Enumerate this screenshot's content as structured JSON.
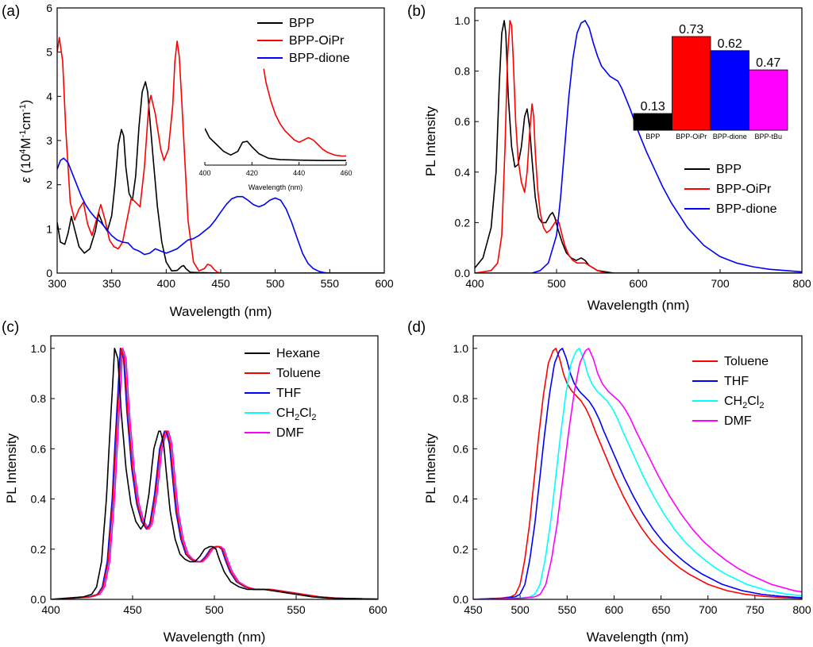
{
  "chart_data": [
    {
      "panel": "(a)",
      "type": "line",
      "xlabel": "Wavelength (nm)",
      "ylabel": "ε (10⁴M⁻¹cm⁻¹)",
      "xlim": [
        300,
        600
      ],
      "ylim": [
        0,
        6
      ],
      "xticks": [
        300,
        350,
        400,
        450,
        500,
        550,
        600
      ],
      "yticks": [
        0,
        1,
        2,
        3,
        4,
        5,
        6
      ],
      "legend": "top-right",
      "series": [
        {
          "name": "BPP",
          "color": "#000000",
          "x": [
            300,
            303,
            307,
            310,
            313,
            317,
            320,
            325,
            330,
            335,
            338,
            342,
            346,
            350,
            353,
            356,
            359,
            361,
            363,
            366,
            369,
            372,
            375,
            378,
            381,
            383,
            385,
            388,
            392,
            396,
            400,
            405,
            410,
            414,
            416,
            418,
            422,
            430,
            450,
            500,
            600
          ],
          "y": [
            1.15,
            0.7,
            0.65,
            0.9,
            1.28,
            0.9,
            0.6,
            0.45,
            0.55,
            0.95,
            1.35,
            1.1,
            0.95,
            1.3,
            2.0,
            2.9,
            3.25,
            3.1,
            2.4,
            1.8,
            1.65,
            2.2,
            3.3,
            4.1,
            4.33,
            4.1,
            3.5,
            2.6,
            1.5,
            0.7,
            0.25,
            0.05,
            0.06,
            0.15,
            0.17,
            0.1,
            0.02,
            0.01,
            0.0,
            0.0,
            0.0
          ]
        },
        {
          "name": "BPP-OiPr",
          "color": "#ff0000",
          "x": [
            300,
            302,
            305,
            308,
            312,
            316,
            320,
            324,
            328,
            332,
            336,
            340,
            344,
            348,
            352,
            356,
            360,
            364,
            368,
            372,
            376,
            380,
            384,
            386,
            390,
            395,
            398,
            402,
            406,
            408,
            410,
            412,
            414,
            417,
            420,
            425,
            430,
            435,
            438,
            441,
            444,
            447,
            450,
            500,
            600
          ],
          "y": [
            5.0,
            5.33,
            4.8,
            3.2,
            1.6,
            1.2,
            1.45,
            1.6,
            1.1,
            0.85,
            1.2,
            1.55,
            1.2,
            0.75,
            0.6,
            0.55,
            0.7,
            1.2,
            1.7,
            1.6,
            1.5,
            2.4,
            3.8,
            4.02,
            3.6,
            2.8,
            2.55,
            2.8,
            3.8,
            4.8,
            5.25,
            4.9,
            4.0,
            2.6,
            1.2,
            0.25,
            0.05,
            0.1,
            0.2,
            0.17,
            0.08,
            0.02,
            0.0,
            0.0,
            0.0
          ]
        },
        {
          "name": "BPP-dione",
          "color": "#0000ff",
          "x": [
            300,
            303,
            306,
            310,
            314,
            318,
            322,
            326,
            330,
            335,
            340,
            345,
            350,
            355,
            360,
            365,
            370,
            375,
            380,
            385,
            390,
            395,
            400,
            405,
            410,
            415,
            420,
            425,
            430,
            435,
            440,
            445,
            450,
            455,
            460,
            465,
            470,
            475,
            480,
            485,
            490,
            495,
            500,
            505,
            510,
            515,
            520,
            525,
            530,
            535,
            540,
            545,
            550,
            560,
            600
          ],
          "y": [
            2.35,
            2.55,
            2.6,
            2.5,
            2.25,
            2.0,
            1.75,
            1.55,
            1.4,
            1.25,
            1.15,
            1.0,
            0.85,
            0.75,
            0.7,
            0.68,
            0.55,
            0.5,
            0.42,
            0.45,
            0.55,
            0.5,
            0.45,
            0.5,
            0.55,
            0.65,
            0.75,
            0.78,
            0.85,
            0.95,
            1.05,
            1.2,
            1.38,
            1.55,
            1.68,
            1.73,
            1.73,
            1.65,
            1.55,
            1.5,
            1.55,
            1.65,
            1.7,
            1.65,
            1.45,
            1.15,
            0.8,
            0.45,
            0.22,
            0.1,
            0.04,
            0.01,
            0.0,
            0.0,
            0.0
          ]
        }
      ],
      "inset": {
        "xlabel": "Wavelength (nm)",
        "xlim": [
          400,
          460
        ],
        "xticks": [
          400,
          420,
          440,
          460
        ],
        "series": [
          {
            "name": "BPP",
            "color": "#000000",
            "x": [
              400,
              402,
              405,
              408,
              411,
              414,
              416,
              418,
              420,
              423,
              427,
              432,
              440,
              450,
              460
            ],
            "y": [
              0.8,
              0.6,
              0.45,
              0.3,
              0.22,
              0.3,
              0.5,
              0.52,
              0.4,
              0.25,
              0.15,
              0.12,
              0.11,
              0.1,
              0.1
            ]
          },
          {
            "name": "BPP-OiPr",
            "color": "#ff0000",
            "x": [
              425,
              426,
              428,
              430,
              432,
              434,
              436,
              438,
              440,
              442,
              444,
              446,
              448,
              450,
              452,
              455,
              458,
              460
            ],
            "y": [
              2.1,
              1.8,
              1.4,
              1.1,
              0.9,
              0.75,
              0.65,
              0.55,
              0.5,
              0.55,
              0.6,
              0.55,
              0.45,
              0.35,
              0.28,
              0.22,
              0.2,
              0.2
            ]
          }
        ]
      }
    },
    {
      "panel": "(b)",
      "type": "line",
      "xlabel": "Wavelength (nm)",
      "ylabel": "PL Intensity",
      "xlim": [
        400,
        800
      ],
      "ylim": [
        0,
        1.05
      ],
      "xticks": [
        400,
        500,
        600,
        700,
        800
      ],
      "yticks": [
        0.0,
        0.2,
        0.4,
        0.6,
        0.8,
        1.0
      ],
      "legend": "middle-right",
      "series": [
        {
          "name": "BPP",
          "color": "#000000",
          "x": [
            400,
            410,
            420,
            426,
            430,
            433,
            436,
            438,
            441,
            445,
            449,
            453,
            457,
            461,
            464,
            467,
            470,
            474,
            478,
            482,
            487,
            492,
            495,
            498,
            502,
            507,
            512,
            518,
            524,
            530,
            535,
            540,
            550,
            570,
            600,
            650,
            800
          ],
          "y": [
            0.02,
            0.06,
            0.18,
            0.4,
            0.75,
            0.95,
            1.0,
            0.95,
            0.7,
            0.5,
            0.42,
            0.43,
            0.5,
            0.62,
            0.65,
            0.58,
            0.45,
            0.3,
            0.22,
            0.2,
            0.2,
            0.23,
            0.24,
            0.22,
            0.17,
            0.12,
            0.08,
            0.06,
            0.05,
            0.06,
            0.05,
            0.03,
            0.01,
            0.0,
            0.0,
            0.0,
            0.0
          ]
        },
        {
          "name": "BPP-OiPr",
          "color": "#ff0000",
          "x": [
            400,
            420,
            428,
            433,
            437,
            440,
            443,
            445,
            447,
            450,
            453,
            457,
            461,
            464,
            467,
            470,
            472,
            474,
            477,
            480,
            484,
            488,
            492,
            496,
            500,
            503,
            506,
            510,
            515,
            520,
            525,
            530,
            535,
            540,
            550,
            560,
            600,
            800
          ],
          "y": [
            0.0,
            0.01,
            0.04,
            0.15,
            0.5,
            0.85,
            1.0,
            0.98,
            0.85,
            0.6,
            0.45,
            0.36,
            0.32,
            0.4,
            0.55,
            0.67,
            0.62,
            0.48,
            0.33,
            0.24,
            0.18,
            0.16,
            0.17,
            0.19,
            0.21,
            0.2,
            0.16,
            0.11,
            0.07,
            0.05,
            0.04,
            0.04,
            0.04,
            0.03,
            0.01,
            0.0,
            0.0,
            0.0
          ]
        },
        {
          "name": "BPP-dione",
          "color": "#0000ff",
          "x": [
            400,
            470,
            480,
            490,
            500,
            505,
            510,
            515,
            520,
            525,
            530,
            535,
            540,
            545,
            550,
            555,
            560,
            565,
            570,
            575,
            580,
            590,
            600,
            610,
            620,
            630,
            640,
            650,
            660,
            680,
            700,
            720,
            740,
            760,
            780,
            800
          ],
          "y": [
            0.0,
            0.0,
            0.01,
            0.04,
            0.15,
            0.3,
            0.5,
            0.7,
            0.85,
            0.95,
            0.99,
            1.0,
            0.97,
            0.91,
            0.86,
            0.82,
            0.8,
            0.78,
            0.77,
            0.76,
            0.73,
            0.65,
            0.56,
            0.48,
            0.41,
            0.34,
            0.28,
            0.23,
            0.18,
            0.11,
            0.065,
            0.04,
            0.025,
            0.015,
            0.01,
            0.005
          ]
        }
      ],
      "inset": {
        "type": "bar",
        "categories": [
          "BPP",
          "BPP-OiPr",
          "BPP-dione",
          "BPP-tBu"
        ],
        "values": [
          0.13,
          0.73,
          0.62,
          0.47
        ],
        "labels": [
          "0.13",
          "0.73",
          "0.62",
          "0.47"
        ],
        "colors": [
          "#000000",
          "#ff0000",
          "#0000ff",
          "#ff00ff"
        ],
        "label_colors": [
          "#000000",
          "#ff0000",
          "#0000ff",
          "#ff00ff"
        ]
      }
    },
    {
      "panel": "(c)",
      "type": "line",
      "xlabel": "Wavelength (nm)",
      "ylabel": "PL Intensity",
      "xlim": [
        400,
        600
      ],
      "ylim": [
        0,
        1.05
      ],
      "xticks": [
        400,
        450,
        500,
        550,
        600
      ],
      "yticks": [
        0.0,
        0.2,
        0.4,
        0.6,
        0.8,
        1.0
      ],
      "legend": "top-right",
      "series": [
        {
          "name": "Hexane",
          "color": "#000000",
          "shift": 0
        },
        {
          "name": "Toluene",
          "color": "#ff0000",
          "shift": 4
        },
        {
          "name": "THF",
          "color": "#0000ff",
          "shift": 3.5
        },
        {
          "name": "CH₂Cl₂",
          "color": "#00ffff",
          "shift": 4.2
        },
        {
          "name": "DMF",
          "color": "#ff00ff",
          "shift": 5
        }
      ],
      "base_profile": {
        "x": [
          400,
          410,
          420,
          425,
          428,
          431,
          434,
          436,
          438,
          439,
          441,
          443,
          446,
          449,
          452,
          455,
          457,
          460,
          463,
          466,
          467,
          469,
          471,
          473,
          476,
          479,
          482,
          485,
          488,
          491,
          494,
          497,
          499,
          501,
          503,
          506,
          510,
          515,
          520,
          525,
          530,
          535,
          540,
          545,
          550,
          560,
          570,
          580,
          590,
          600
        ],
        "y": [
          0.0,
          0.005,
          0.01,
          0.02,
          0.05,
          0.15,
          0.4,
          0.65,
          0.88,
          1.0,
          0.96,
          0.75,
          0.52,
          0.38,
          0.31,
          0.28,
          0.3,
          0.42,
          0.6,
          0.67,
          0.67,
          0.62,
          0.48,
          0.35,
          0.24,
          0.18,
          0.16,
          0.15,
          0.15,
          0.17,
          0.2,
          0.21,
          0.21,
          0.2,
          0.16,
          0.11,
          0.07,
          0.05,
          0.04,
          0.04,
          0.04,
          0.035,
          0.03,
          0.025,
          0.02,
          0.01,
          0.005,
          0.003,
          0.002,
          0.0
        ]
      }
    },
    {
      "panel": "(d)",
      "type": "line",
      "xlabel": "Wavelength (nm)",
      "ylabel": "PL Intensity",
      "xlim": [
        450,
        800
      ],
      "ylim": [
        0,
        1.05
      ],
      "xticks": [
        450,
        500,
        550,
        600,
        650,
        700,
        750,
        800
      ],
      "yticks": [
        0.0,
        0.2,
        0.4,
        0.6,
        0.8,
        1.0
      ],
      "legend": "top-right",
      "series": [
        {
          "name": "Toluene",
          "color": "#ff0000",
          "shift": 0,
          "stretch": 1.0
        },
        {
          "name": "THF",
          "color": "#0000ff",
          "shift": 7,
          "stretch": 1.05
        },
        {
          "name": "CH₂Cl₂",
          "color": "#00ffff",
          "shift": 25,
          "stretch": 1.1
        },
        {
          "name": "DMF",
          "color": "#ff00ff",
          "shift": 35,
          "stretch": 1.2
        }
      ],
      "base_profile": {
        "x": [
          450,
          480,
          490,
          495,
          500,
          505,
          510,
          515,
          520,
          525,
          530,
          535,
          538,
          542,
          546,
          550,
          555,
          560,
          565,
          570,
          575,
          580,
          590,
          600,
          610,
          620,
          630,
          640,
          650,
          660,
          670,
          680,
          690,
          700,
          720,
          740,
          760,
          780,
          800
        ],
        "y": [
          0.0,
          0.005,
          0.01,
          0.02,
          0.06,
          0.16,
          0.3,
          0.48,
          0.66,
          0.82,
          0.94,
          0.99,
          1.0,
          0.96,
          0.9,
          0.86,
          0.83,
          0.81,
          0.79,
          0.76,
          0.72,
          0.67,
          0.58,
          0.49,
          0.41,
          0.34,
          0.28,
          0.23,
          0.19,
          0.155,
          0.125,
          0.1,
          0.08,
          0.06,
          0.035,
          0.02,
          0.012,
          0.007,
          0.004
        ]
      }
    }
  ]
}
